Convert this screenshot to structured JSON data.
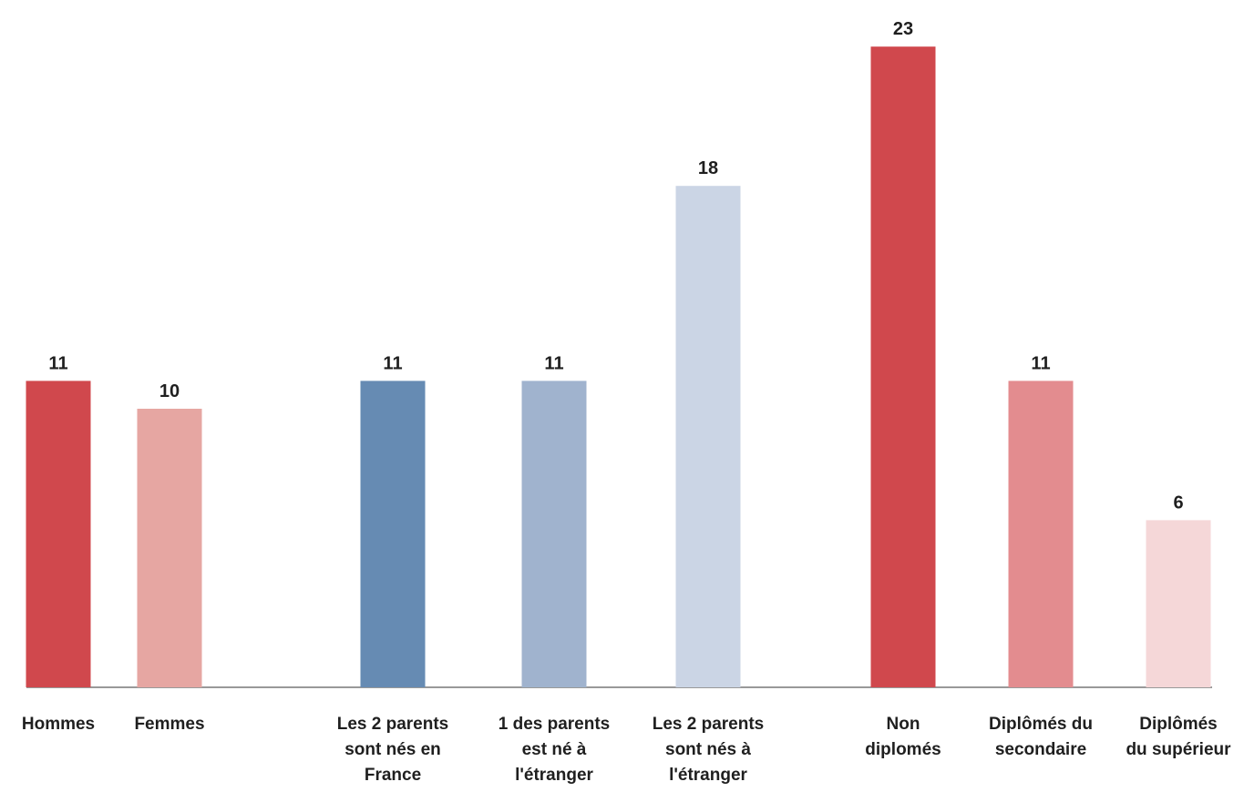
{
  "chart_data": {
    "type": "bar",
    "title": "",
    "xlabel": "",
    "ylabel": "",
    "ylim": [
      0,
      23
    ],
    "grid": false,
    "legend": "none",
    "bars": [
      {
        "label": [
          "Hommes"
        ],
        "value": 11,
        "color": "#d0484d",
        "group": 0
      },
      {
        "label": [
          "Femmes"
        ],
        "value": 10,
        "color": "#e6a6a2",
        "group": 0
      },
      {
        "label": [
          "Les 2 parents",
          "sont nés en",
          "France"
        ],
        "value": 11,
        "color": "#668bb3",
        "group": 1
      },
      {
        "label": [
          "1 des parents",
          "est né à",
          "l'étranger"
        ],
        "value": 11,
        "color": "#a0b3ce",
        "group": 1
      },
      {
        "label": [
          "Les 2 parents",
          "sont nés à",
          "l'étranger"
        ],
        "value": 18,
        "color": "#cbd5e5",
        "group": 1
      },
      {
        "label": [
          "Non",
          "diplomés"
        ],
        "value": 23,
        "color": "#d0484d",
        "group": 2
      },
      {
        "label": [
          "Diplômés du",
          "secondaire"
        ],
        "value": 11,
        "color": "#e38c8f",
        "group": 2
      },
      {
        "label": [
          "Diplômés",
          "du supérieur"
        ],
        "value": 6,
        "color": "#f5d7d8",
        "group": 2
      }
    ]
  }
}
